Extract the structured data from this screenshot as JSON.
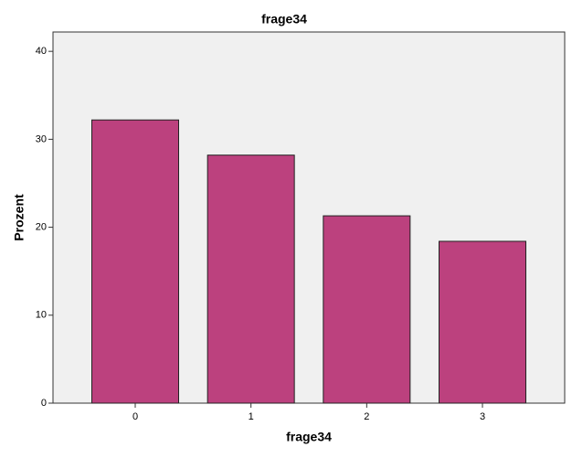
{
  "chart_data": {
    "type": "bar",
    "title": "frage34",
    "x_label": "frage34",
    "y_label": "Prozent",
    "categories": [
      "0",
      "1",
      "2",
      "3"
    ],
    "values": [
      32.2,
      28.2,
      21.3,
      18.4
    ],
    "color": "#bc417e",
    "ylim": [
      0,
      42.2
    ],
    "yticks": [
      0,
      10,
      20,
      30,
      40
    ],
    "grid": false
  }
}
